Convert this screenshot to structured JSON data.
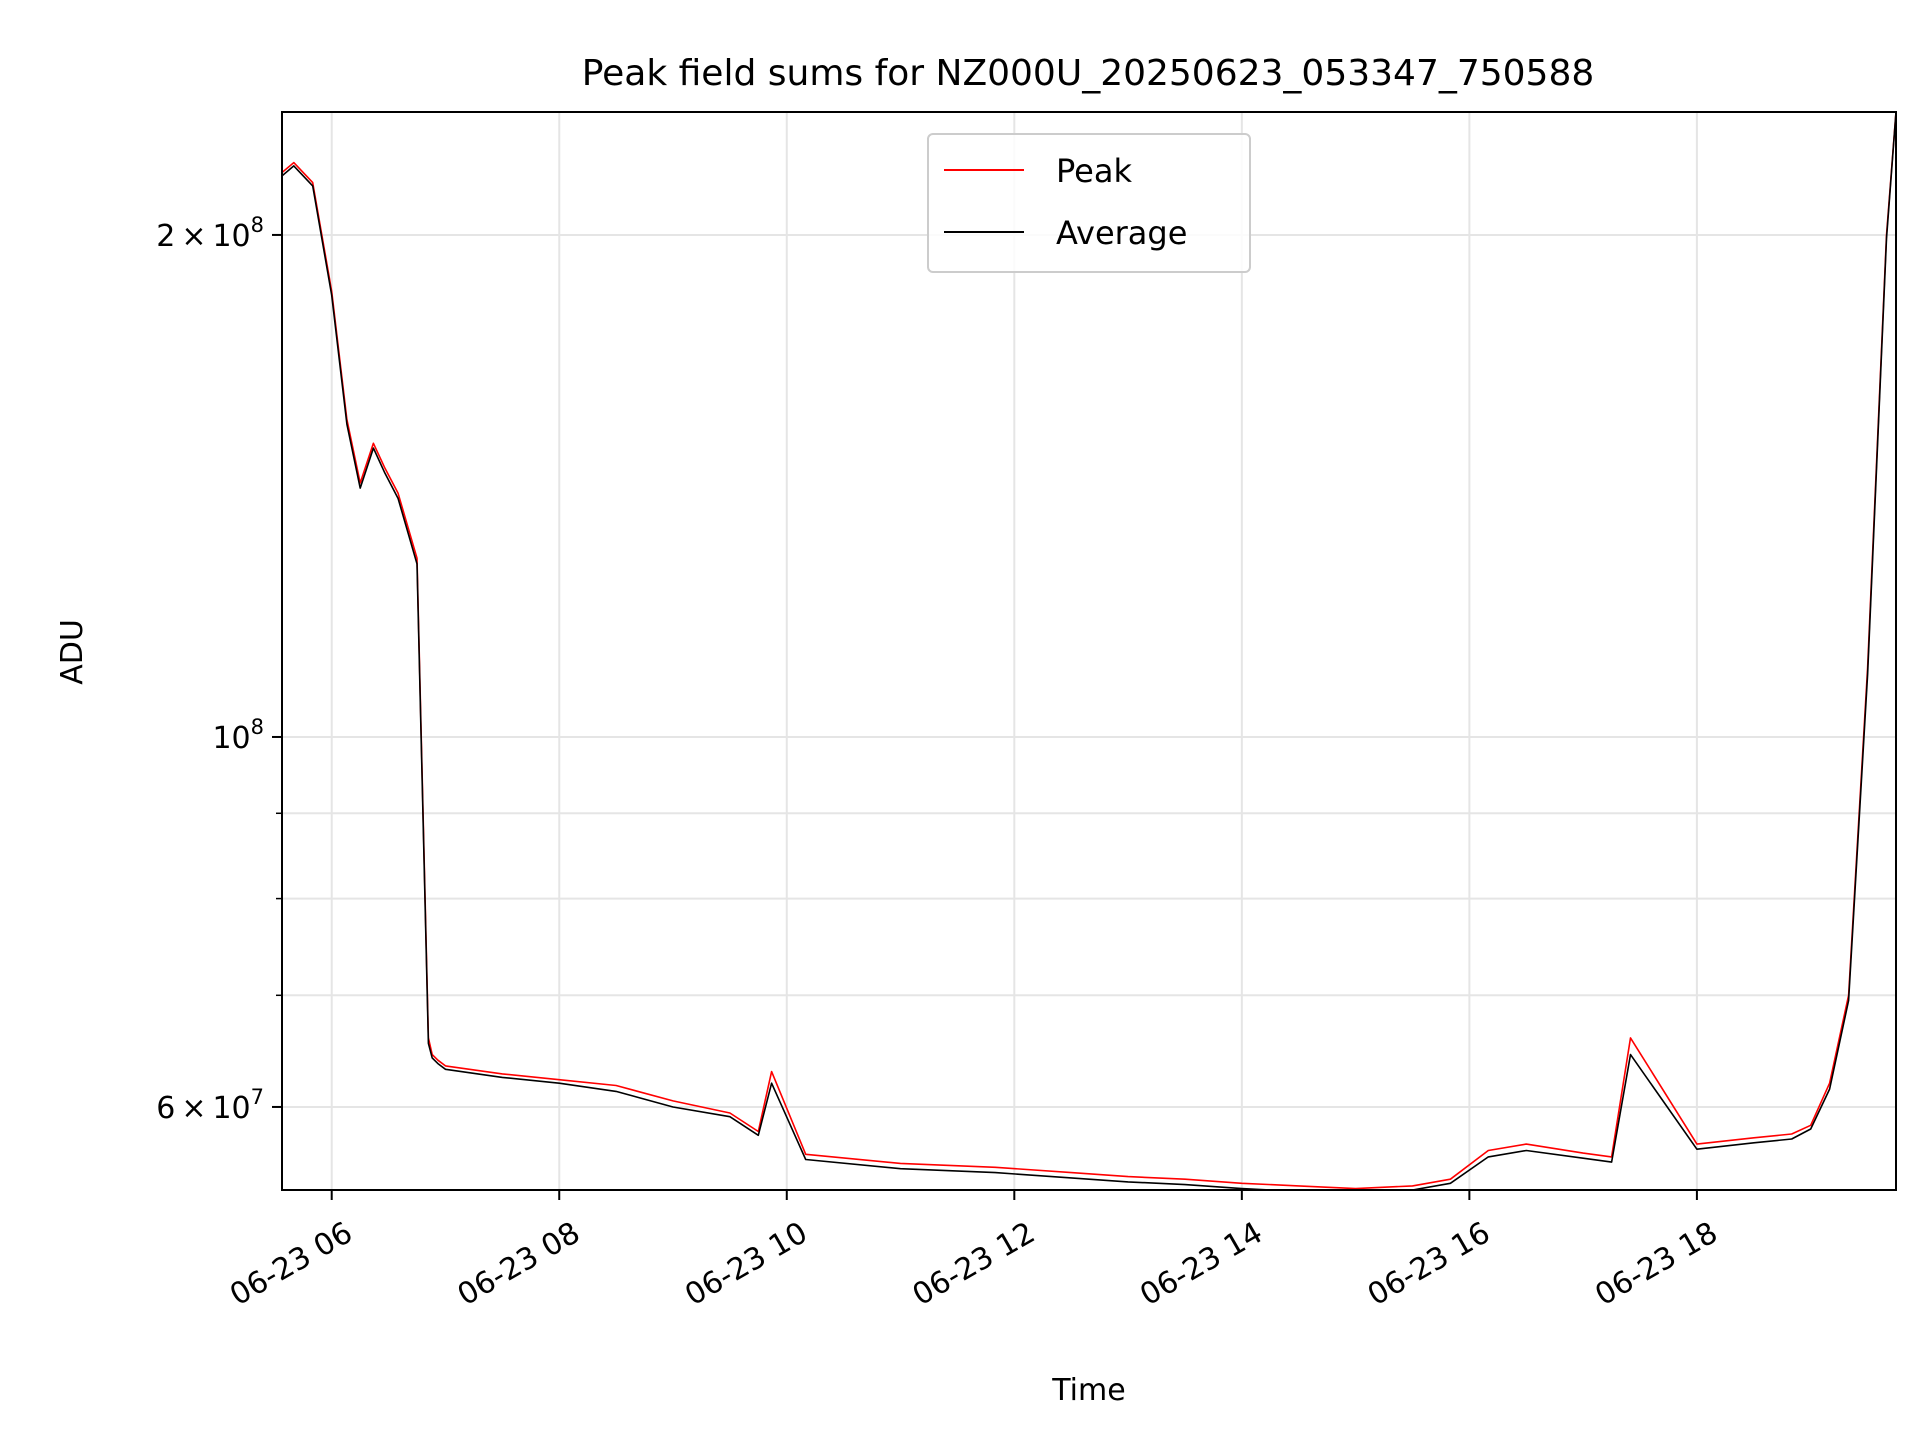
{
  "chart_data": {
    "type": "line",
    "title": "Peak field sums for NZ000U_20250623_053347_750588",
    "xlabel": "Time",
    "ylabel": "ADU",
    "y_scale": "log",
    "grid": true,
    "legend_position": "top-center",
    "xlim": [
      "2025-06-23 05:33:47",
      "2025-06-23 19:45:00"
    ],
    "ylim": [
      53500000,
      237000000
    ],
    "x_ticks": [
      {
        "value": "2025-06-23 06:00",
        "label": "06-23 06"
      },
      {
        "value": "2025-06-23 08:00",
        "label": "06-23 08"
      },
      {
        "value": "2025-06-23 10:00",
        "label": "06-23 10"
      },
      {
        "value": "2025-06-23 12:00",
        "label": "06-23 12"
      },
      {
        "value": "2025-06-23 14:00",
        "label": "06-23 14"
      },
      {
        "value": "2025-06-23 16:00",
        "label": "06-23 16"
      },
      {
        "value": "2025-06-23 18:00",
        "label": "06-23 18"
      }
    ],
    "y_major_ticks": [
      {
        "value": 60000000,
        "base": "6",
        "exp": "7",
        "label": "6 × 10^7"
      },
      {
        "value": 100000000,
        "base": "",
        "exp": "8",
        "label": "10^8"
      },
      {
        "value": 200000000,
        "base": "2",
        "exp": "8",
        "label": "2 × 10^8"
      }
    ],
    "y_minor_ticks": [
      70000000,
      80000000,
      90000000
    ],
    "series": [
      {
        "name": "Peak",
        "color": "#ff0000",
        "x": [
          "2025-06-23 05:33:47",
          "2025-06-23 05:40",
          "2025-06-23 05:50",
          "2025-06-23 06:00",
          "2025-06-23 06:08",
          "2025-06-23 06:15",
          "2025-06-23 06:22",
          "2025-06-23 06:28",
          "2025-06-23 06:35",
          "2025-06-23 06:45",
          "2025-06-23 06:51",
          "2025-06-23 06:53",
          "2025-06-23 06:56",
          "2025-06-23 07:00",
          "2025-06-23 07:30",
          "2025-06-23 08:00",
          "2025-06-23 08:30",
          "2025-06-23 09:00",
          "2025-06-23 09:30",
          "2025-06-23 09:45",
          "2025-06-23 09:52",
          "2025-06-23 10:10",
          "2025-06-23 11:00",
          "2025-06-23 11:50",
          "2025-06-23 12:30",
          "2025-06-23 13:00",
          "2025-06-23 13:30",
          "2025-06-23 14:00",
          "2025-06-23 14:30",
          "2025-06-23 15:00",
          "2025-06-23 15:30",
          "2025-06-23 15:50",
          "2025-06-23 16:10",
          "2025-06-23 16:30",
          "2025-06-23 17:00",
          "2025-06-23 17:15",
          "2025-06-23 17:25",
          "2025-06-23 18:00",
          "2025-06-23 18:30",
          "2025-06-23 18:50",
          "2025-06-23 19:00",
          "2025-06-23 19:10",
          "2025-06-23 19:20",
          "2025-06-23 19:30",
          "2025-06-23 19:40",
          "2025-06-23 19:45"
        ],
        "values": [
          218000000,
          221000000,
          215000000,
          185000000,
          155000000,
          142000000,
          150000000,
          145000000,
          140000000,
          128000000,
          66000000,
          64500000,
          64000000,
          63500000,
          62800000,
          62300000,
          61800000,
          60500000,
          59500000,
          58000000,
          63000000,
          56200000,
          55500000,
          55200000,
          54800000,
          54500000,
          54300000,
          54000000,
          53800000,
          53600000,
          53800000,
          54300000,
          56500000,
          57000000,
          56300000,
          56000000,
          66000000,
          57000000,
          57500000,
          57800000,
          58500000,
          62000000,
          70000000,
          110000000,
          200000000,
          237000000
        ]
      },
      {
        "name": "Average",
        "color": "#000000",
        "x": [
          "2025-06-23 05:33:47",
          "2025-06-23 05:40",
          "2025-06-23 05:50",
          "2025-06-23 06:00",
          "2025-06-23 06:08",
          "2025-06-23 06:15",
          "2025-06-23 06:22",
          "2025-06-23 06:28",
          "2025-06-23 06:35",
          "2025-06-23 06:45",
          "2025-06-23 06:51",
          "2025-06-23 06:53",
          "2025-06-23 06:56",
          "2025-06-23 07:00",
          "2025-06-23 07:30",
          "2025-06-23 08:00",
          "2025-06-23 08:30",
          "2025-06-23 09:00",
          "2025-06-23 09:30",
          "2025-06-23 09:45",
          "2025-06-23 09:52",
          "2025-06-23 10:10",
          "2025-06-23 11:00",
          "2025-06-23 11:50",
          "2025-06-23 12:30",
          "2025-06-23 13:00",
          "2025-06-23 13:30",
          "2025-06-23 14:00",
          "2025-06-23 14:30",
          "2025-06-23 15:00",
          "2025-06-23 15:30",
          "2025-06-23 15:50",
          "2025-06-23 16:10",
          "2025-06-23 16:30",
          "2025-06-23 17:00",
          "2025-06-23 17:15",
          "2025-06-23 17:25",
          "2025-06-23 18:00",
          "2025-06-23 18:30",
          "2025-06-23 18:50",
          "2025-06-23 19:00",
          "2025-06-23 19:10",
          "2025-06-23 19:20",
          "2025-06-23 19:30",
          "2025-06-23 19:40",
          "2025-06-23 19:45"
        ],
        "values": [
          217000000,
          220000000,
          214000000,
          184000000,
          154000000,
          141000000,
          149000000,
          144000000,
          139000000,
          127000000,
          65500000,
          64200000,
          63700000,
          63200000,
          62500000,
          62000000,
          61300000,
          60000000,
          59200000,
          57700000,
          62000000,
          55800000,
          55100000,
          54800000,
          54400000,
          54100000,
          53900000,
          53600000,
          53400000,
          53300000,
          53500000,
          54000000,
          56000000,
          56500000,
          55900000,
          55600000,
          64500000,
          56600000,
          57100000,
          57400000,
          58200000,
          61500000,
          69500000,
          109000000,
          199000000,
          237000000
        ]
      }
    ]
  }
}
